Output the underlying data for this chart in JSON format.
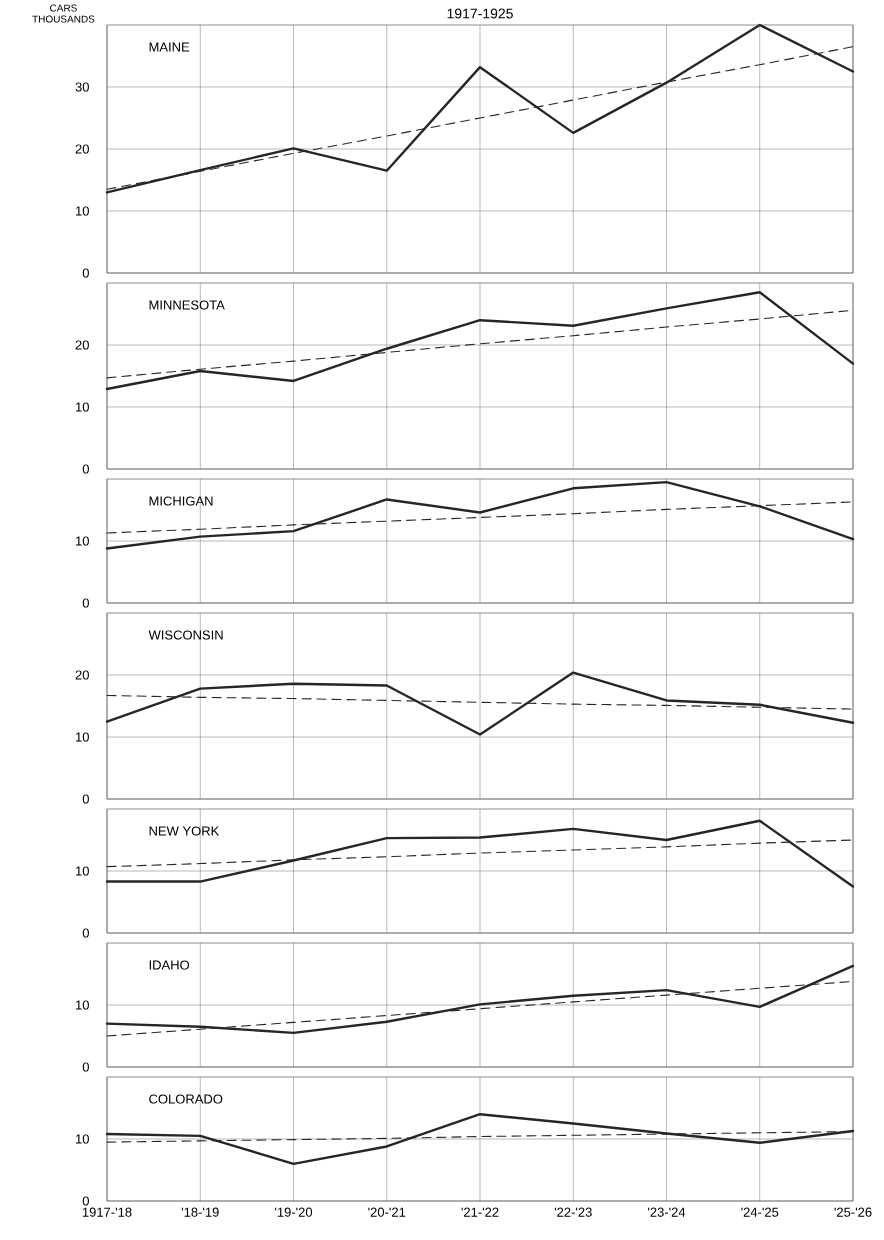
{
  "chart_data": [
    {
      "type": "line",
      "title": "MAINE",
      "ylabel": "CARS THOUSANDS",
      "annotations": [
        "1917-1925"
      ],
      "categories": [
        null,
        null,
        null,
        null,
        null,
        null,
        null,
        null,
        null
      ],
      "ylim": [
        0,
        40
      ],
      "yticks": [
        0,
        10,
        20,
        30
      ],
      "grid": true,
      "tick_labels": "y",
      "marker": "none",
      "series": [
        {
          "color": "#262626",
          "line_style": "solid",
          "values": [
            13.0,
            16.6,
            20.1,
            16.5,
            33.2,
            22.6,
            30.7,
            40.0,
            32.5
          ]
        },
        {
          "color": "#262626",
          "line_style": "dashed",
          "values": [
            13.5,
            16.4,
            19.3,
            22.1,
            25.0,
            27.9,
            30.8,
            33.6,
            36.5
          ]
        }
      ]
    },
    {
      "type": "line",
      "title": "MINNESOTA",
      "categories": [
        null,
        null,
        null,
        null,
        null,
        null,
        null,
        null,
        null
      ],
      "ylim": [
        0,
        30
      ],
      "yticks": [
        0,
        10,
        20
      ],
      "grid": true,
      "tick_labels": "y",
      "marker": "none",
      "series": [
        {
          "color": "#262626",
          "line_style": "solid",
          "values": [
            12.9,
            15.8,
            14.2,
            19.4,
            24.0,
            23.1,
            25.9,
            28.5,
            17.0
          ]
        },
        {
          "color": "#262626",
          "line_style": "dashed",
          "values": [
            14.7,
            16.1,
            17.4,
            18.8,
            20.2,
            21.5,
            22.9,
            24.2,
            25.6
          ]
        }
      ]
    },
    {
      "type": "line",
      "title": "MICHIGAN",
      "categories": [
        null,
        null,
        null,
        null,
        null,
        null,
        null,
        null,
        null
      ],
      "ylim": [
        0,
        20
      ],
      "yticks": [
        0,
        10
      ],
      "grid": true,
      "tick_labels": "y",
      "marker": "none",
      "series": [
        {
          "color": "#262626",
          "line_style": "solid",
          "values": [
            8.8,
            10.7,
            11.6,
            16.7,
            14.6,
            18.5,
            19.5,
            15.6,
            10.3
          ]
        },
        {
          "color": "#262626",
          "line_style": "dashed",
          "values": [
            11.3,
            11.9,
            12.6,
            13.2,
            13.8,
            14.4,
            15.1,
            15.7,
            16.3
          ]
        }
      ]
    },
    {
      "type": "line",
      "title": "WISCONSIN",
      "categories": [
        null,
        null,
        null,
        null,
        null,
        null,
        null,
        null,
        null
      ],
      "ylim": [
        0,
        30
      ],
      "yticks": [
        0,
        10,
        20
      ],
      "grid": true,
      "tick_labels": "y",
      "marker": "none",
      "series": [
        {
          "color": "#262626",
          "line_style": "solid",
          "values": [
            12.5,
            17.8,
            18.6,
            18.3,
            10.4,
            20.4,
            15.9,
            15.2,
            12.3
          ]
        },
        {
          "color": "#262626",
          "line_style": "dashed",
          "values": [
            16.7,
            16.4,
            16.2,
            15.9,
            15.6,
            15.3,
            15.1,
            14.8,
            14.5
          ]
        }
      ]
    },
    {
      "type": "line",
      "title": "NEW YORK",
      "categories": [
        null,
        null,
        null,
        null,
        null,
        null,
        null,
        null,
        null
      ],
      "ylim": [
        0,
        20
      ],
      "yticks": [
        0,
        10
      ],
      "grid": true,
      "tick_labels": "y",
      "marker": "none",
      "series": [
        {
          "color": "#262626",
          "line_style": "solid",
          "values": [
            8.3,
            8.3,
            11.7,
            15.3,
            15.4,
            16.8,
            15.0,
            18.1,
            7.5
          ]
        },
        {
          "color": "#262626",
          "line_style": "dashed",
          "values": [
            10.7,
            11.2,
            11.8,
            12.3,
            12.9,
            13.4,
            13.9,
            14.5,
            15.0
          ]
        }
      ]
    },
    {
      "type": "line",
      "title": "IDAHO",
      "categories": [
        null,
        null,
        null,
        null,
        null,
        null,
        null,
        null,
        null
      ],
      "ylim": [
        0,
        20
      ],
      "yticks": [
        0,
        10
      ],
      "grid": true,
      "tick_labels": "y",
      "marker": "none",
      "series": [
        {
          "color": "#262626",
          "line_style": "solid",
          "values": [
            7.0,
            6.5,
            5.5,
            7.3,
            10.1,
            11.5,
            12.4,
            9.7,
            16.3
          ]
        },
        {
          "color": "#262626",
          "line_style": "dashed",
          "values": [
            5.0,
            6.1,
            7.2,
            8.3,
            9.4,
            10.5,
            11.6,
            12.7,
            13.8
          ]
        }
      ]
    },
    {
      "type": "line",
      "title": "COLORADO",
      "categories": [
        "1917-'18",
        "'18-'19",
        "'19-'20",
        "'20-'21",
        "'21-'22",
        "'22-'23",
        "'23-'24",
        "'24-'25",
        "'25-'26"
      ],
      "ylim": [
        0,
        20
      ],
      "yticks": [
        0,
        10
      ],
      "grid": true,
      "marker": "none",
      "series": [
        {
          "color": "#262626",
          "line_style": "solid",
          "values": [
            10.8,
            10.5,
            6.0,
            8.8,
            14.0,
            12.5,
            10.9,
            9.4,
            11.3
          ]
        },
        {
          "color": "#262626",
          "line_style": "dashed",
          "values": [
            9.5,
            9.7,
            9.9,
            10.1,
            10.4,
            10.6,
            10.8,
            11.0,
            11.2
          ]
        }
      ]
    }
  ]
}
